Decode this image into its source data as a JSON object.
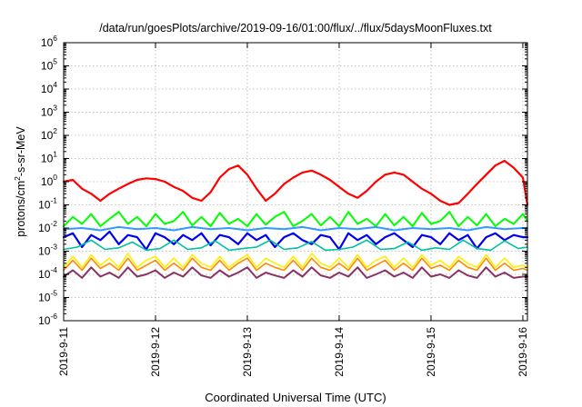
{
  "chart_data": {
    "type": "line",
    "title": "/data/run/goesPlots/archive/2019-09-16/01:00/flux/../flux/5daysMoonFluxes.txt",
    "xlabel": "Coordinated Universal Time (UTC)",
    "ylabel_main": "protons/cm",
    "ylabel_sup": "2",
    "ylabel_rest": "-s-sr-MeV",
    "yscale": "log",
    "ylim": [
      1e-06,
      1000000.0
    ],
    "y_ticks": [
      {
        "base": "10",
        "exp": "-6",
        "value": 1e-06
      },
      {
        "base": "10",
        "exp": "-5",
        "value": 1e-05
      },
      {
        "base": "10",
        "exp": "-4",
        "value": 0.0001
      },
      {
        "base": "10",
        "exp": "-3",
        "value": 0.001
      },
      {
        "base": "10",
        "exp": "-2",
        "value": 0.01
      },
      {
        "base": "10",
        "exp": "-1",
        "value": 0.1
      },
      {
        "base": "10",
        "exp": "0",
        "value": 1
      },
      {
        "base": "10",
        "exp": "1",
        "value": 10
      },
      {
        "base": "10",
        "exp": "2",
        "value": 100
      },
      {
        "base": "10",
        "exp": "3",
        "value": 1000
      },
      {
        "base": "10",
        "exp": "4",
        "value": 10000
      },
      {
        "base": "10",
        "exp": "5",
        "value": 100000
      },
      {
        "base": "10",
        "exp": "6",
        "value": 1000000
      }
    ],
    "x_ticks": [
      {
        "label": "2019-9-11",
        "day": 0
      },
      {
        "label": "2019-9-12",
        "day": 1
      },
      {
        "label": "2019-9-13",
        "day": 2
      },
      {
        "label": "2019-9-14",
        "day": 3
      },
      {
        "label": "2019-9-15",
        "day": 4
      },
      {
        "label": "2019-9-16",
        "day": 5
      }
    ],
    "xlim_days": [
      0,
      5.05
    ],
    "grid": true,
    "legend": "none",
    "series": [
      {
        "color": "#ff0000",
        "x": [
          0.0,
          0.1,
          0.2,
          0.3,
          0.4,
          0.5,
          0.6,
          0.7,
          0.8,
          0.9,
          1.0,
          1.1,
          1.2,
          1.3,
          1.4,
          1.5,
          1.6,
          1.7,
          1.8,
          1.9,
          2.0,
          2.1,
          2.2,
          2.3,
          2.4,
          2.5,
          2.6,
          2.7,
          2.8,
          2.9,
          3.0,
          3.1,
          3.2,
          3.3,
          3.4,
          3.5,
          3.6,
          3.7,
          3.8,
          3.9,
          4.0,
          4.1,
          4.2,
          4.3,
          4.4,
          4.5,
          4.6,
          4.7,
          4.8,
          4.9,
          5.0,
          5.05
        ],
        "y": [
          1.0,
          1.2,
          0.5,
          0.3,
          0.15,
          0.3,
          0.5,
          0.8,
          1.2,
          1.4,
          1.3,
          1.0,
          0.6,
          0.4,
          0.2,
          0.15,
          0.35,
          1.5,
          3.5,
          5.0,
          2.0,
          0.5,
          0.15,
          0.3,
          0.8,
          1.5,
          2.5,
          3.0,
          2.0,
          1.2,
          0.6,
          0.3,
          0.2,
          0.4,
          1.0,
          2.0,
          2.5,
          2.0,
          1.0,
          0.5,
          0.3,
          0.15,
          0.1,
          0.12,
          0.3,
          0.8,
          2.0,
          5.0,
          8.0,
          4.0,
          1.5,
          0.1
        ]
      },
      {
        "color": "#00ff00",
        "x": [
          0.0,
          0.1,
          0.2,
          0.3,
          0.4,
          0.5,
          0.6,
          0.7,
          0.8,
          0.9,
          1.0,
          1.1,
          1.2,
          1.3,
          1.4,
          1.5,
          1.6,
          1.7,
          1.8,
          1.9,
          2.0,
          2.1,
          2.2,
          2.3,
          2.4,
          2.5,
          2.6,
          2.7,
          2.8,
          2.9,
          3.0,
          3.1,
          3.2,
          3.3,
          3.4,
          3.5,
          3.6,
          3.7,
          3.8,
          3.9,
          4.0,
          4.1,
          4.2,
          4.3,
          4.4,
          4.5,
          4.6,
          4.7,
          4.8,
          4.9,
          5.0,
          5.05
        ],
        "y": [
          0.012,
          0.03,
          0.015,
          0.04,
          0.012,
          0.025,
          0.05,
          0.015,
          0.03,
          0.012,
          0.04,
          0.015,
          0.02,
          0.05,
          0.013,
          0.03,
          0.012,
          0.045,
          0.015,
          0.025,
          0.012,
          0.04,
          0.014,
          0.03,
          0.05,
          0.012,
          0.02,
          0.04,
          0.013,
          0.03,
          0.012,
          0.05,
          0.015,
          0.025,
          0.012,
          0.04,
          0.013,
          0.03,
          0.012,
          0.045,
          0.015,
          0.02,
          0.05,
          0.012,
          0.03,
          0.013,
          0.04,
          0.012,
          0.025,
          0.015,
          0.04,
          0.02
        ]
      },
      {
        "color": "#3399ff",
        "x": [
          0.0,
          0.2,
          0.4,
          0.6,
          0.8,
          1.0,
          1.2,
          1.4,
          1.6,
          1.8,
          2.0,
          2.2,
          2.4,
          2.6,
          2.8,
          3.0,
          3.2,
          3.4,
          3.6,
          3.8,
          4.0,
          4.2,
          4.4,
          4.6,
          4.8,
          5.0,
          5.05
        ],
        "y": [
          0.009,
          0.01,
          0.008,
          0.011,
          0.009,
          0.01,
          0.008,
          0.011,
          0.009,
          0.01,
          0.008,
          0.01,
          0.009,
          0.011,
          0.008,
          0.01,
          0.009,
          0.011,
          0.008,
          0.01,
          0.009,
          0.01,
          0.008,
          0.011,
          0.009,
          0.01,
          0.01
        ]
      },
      {
        "color": "#0000ee",
        "x": [
          0.0,
          0.1,
          0.2,
          0.3,
          0.4,
          0.5,
          0.6,
          0.7,
          0.8,
          0.9,
          1.0,
          1.1,
          1.2,
          1.3,
          1.4,
          1.5,
          1.6,
          1.7,
          1.8,
          1.9,
          2.0,
          2.1,
          2.2,
          2.3,
          2.4,
          2.5,
          2.6,
          2.7,
          2.8,
          2.9,
          3.0,
          3.1,
          3.2,
          3.3,
          3.4,
          3.5,
          3.6,
          3.7,
          3.8,
          3.9,
          4.0,
          4.1,
          4.2,
          4.3,
          4.4,
          4.5,
          4.6,
          4.7,
          4.8,
          4.9,
          5.0,
          5.05
        ],
        "y": [
          0.004,
          0.006,
          0.0015,
          0.005,
          0.003,
          0.007,
          0.002,
          0.005,
          0.004,
          0.0012,
          0.006,
          0.004,
          0.002,
          0.005,
          0.003,
          0.006,
          0.0018,
          0.005,
          0.004,
          0.002,
          0.006,
          0.003,
          0.005,
          0.0015,
          0.004,
          0.006,
          0.003,
          0.002,
          0.005,
          0.004,
          0.0012,
          0.006,
          0.003,
          0.005,
          0.002,
          0.004,
          0.006,
          0.003,
          0.0015,
          0.005,
          0.004,
          0.002,
          0.006,
          0.003,
          0.005,
          0.0013,
          0.004,
          0.006,
          0.003,
          0.005,
          0.004,
          0.004
        ]
      },
      {
        "color": "#00c0a0",
        "x": [
          0.0,
          0.15,
          0.3,
          0.45,
          0.6,
          0.75,
          0.9,
          1.05,
          1.2,
          1.35,
          1.5,
          1.65,
          1.8,
          1.95,
          2.1,
          2.25,
          2.4,
          2.55,
          2.7,
          2.85,
          3.0,
          3.15,
          3.3,
          3.45,
          3.6,
          3.75,
          3.9,
          4.05,
          4.2,
          4.35,
          4.5,
          4.65,
          4.8,
          4.95,
          5.05
        ],
        "y": [
          0.0012,
          0.0015,
          0.003,
          0.0012,
          0.0014,
          0.0025,
          0.0011,
          0.0013,
          0.003,
          0.0012,
          0.0014,
          0.0028,
          0.0011,
          0.0013,
          0.0015,
          0.003,
          0.0012,
          0.0014,
          0.0026,
          0.0011,
          0.0012,
          0.0015,
          0.003,
          0.0012,
          0.0013,
          0.0025,
          0.0011,
          0.0014,
          0.0012,
          0.003,
          0.0013,
          0.0011,
          0.0028,
          0.0013,
          0.0015
        ]
      },
      {
        "color": "#ffee00",
        "x": [
          0.0,
          0.1,
          0.2,
          0.3,
          0.4,
          0.5,
          0.6,
          0.7,
          0.8,
          0.9,
          1.0,
          1.1,
          1.2,
          1.3,
          1.4,
          1.5,
          1.6,
          1.7,
          1.8,
          1.9,
          2.0,
          2.1,
          2.2,
          2.3,
          2.4,
          2.5,
          2.6,
          2.7,
          2.8,
          2.9,
          3.0,
          3.1,
          3.2,
          3.3,
          3.4,
          3.5,
          3.6,
          3.7,
          3.8,
          3.9,
          4.0,
          4.1,
          4.2,
          4.3,
          4.4,
          4.5,
          4.6,
          4.7,
          4.8,
          4.9,
          5.0,
          5.05
        ],
        "y": [
          0.0002,
          0.0006,
          0.0002,
          0.0007,
          0.00025,
          0.0005,
          0.0002,
          0.0008,
          0.0002,
          0.0004,
          0.0006,
          0.0002,
          0.0005,
          0.0002,
          0.0007,
          0.0003,
          0.0002,
          0.0006,
          0.0002,
          0.0004,
          0.0007,
          0.0002,
          0.0005,
          0.0003,
          0.0002,
          0.0006,
          0.0002,
          0.0008,
          0.0003,
          0.0002,
          0.0005,
          0.0002,
          0.0007,
          0.0002,
          0.0004,
          0.0006,
          0.0002,
          0.0005,
          0.0002,
          0.0007,
          0.00025,
          0.0004,
          0.0002,
          0.0006,
          0.0003,
          0.0002,
          0.0007,
          0.0002,
          0.0005,
          0.0002,
          0.00025,
          0.0002
        ]
      },
      {
        "color": "#ff8800",
        "x": [
          0.0,
          0.1,
          0.2,
          0.3,
          0.4,
          0.5,
          0.6,
          0.7,
          0.8,
          0.9,
          1.0,
          1.1,
          1.2,
          1.3,
          1.4,
          1.5,
          1.6,
          1.7,
          1.8,
          1.9,
          2.0,
          2.1,
          2.2,
          2.3,
          2.4,
          2.5,
          2.6,
          2.7,
          2.8,
          2.9,
          3.0,
          3.1,
          3.2,
          3.3,
          3.4,
          3.5,
          3.6,
          3.7,
          3.8,
          3.9,
          4.0,
          4.1,
          4.2,
          4.3,
          4.4,
          4.5,
          4.6,
          4.7,
          4.8,
          4.9,
          5.0,
          5.05
        ],
        "y": [
          0.00015,
          0.0004,
          0.00015,
          0.0005,
          0.00018,
          0.0003,
          0.00015,
          0.0005,
          0.00015,
          0.00025,
          0.0004,
          0.00015,
          0.0003,
          0.00015,
          0.0005,
          0.0002,
          0.00015,
          0.0004,
          0.00015,
          0.0003,
          0.0005,
          0.00015,
          0.0003,
          0.0002,
          0.00015,
          0.0004,
          0.00015,
          0.0005,
          0.0002,
          0.00015,
          0.0003,
          0.00015,
          0.0005,
          0.00015,
          0.00025,
          0.0004,
          0.00015,
          0.0003,
          0.00015,
          0.0005,
          0.00018,
          0.00025,
          0.00015,
          0.0004,
          0.0002,
          0.00015,
          0.0005,
          0.00015,
          0.0003,
          0.00015,
          0.00018,
          0.00015
        ]
      },
      {
        "color": "#883366",
        "x": [
          0.0,
          0.1,
          0.2,
          0.3,
          0.4,
          0.5,
          0.6,
          0.7,
          0.8,
          0.9,
          1.0,
          1.1,
          1.2,
          1.3,
          1.4,
          1.5,
          1.6,
          1.7,
          1.8,
          1.9,
          2.0,
          2.1,
          2.2,
          2.3,
          2.4,
          2.5,
          2.6,
          2.7,
          2.8,
          2.9,
          3.0,
          3.1,
          3.2,
          3.3,
          3.4,
          3.5,
          3.6,
          3.7,
          3.8,
          3.9,
          4.0,
          4.1,
          4.2,
          4.3,
          4.4,
          4.5,
          4.6,
          4.7,
          4.8,
          4.9,
          5.0,
          5.05
        ],
        "y": [
          8e-05,
          0.00015,
          7e-05,
          0.0002,
          8e-05,
          0.00012,
          7e-05,
          0.0002,
          8e-05,
          0.0001,
          0.00015,
          7e-05,
          0.00012,
          8e-05,
          0.0002,
          9e-05,
          7e-05,
          0.00015,
          8e-05,
          0.00012,
          0.0002,
          7e-05,
          0.00012,
          9e-05,
          7e-05,
          0.00015,
          8e-05,
          0.0002,
          9e-05,
          7e-05,
          0.00012,
          8e-05,
          0.0002,
          7e-05,
          0.0001,
          0.00015,
          8e-05,
          0.00012,
          7e-05,
          0.0002,
          8e-05,
          0.0001,
          7e-05,
          0.00015,
          9e-05,
          7e-05,
          0.0002,
          8e-05,
          0.00012,
          7e-05,
          8e-05,
          8e-05
        ]
      }
    ]
  }
}
